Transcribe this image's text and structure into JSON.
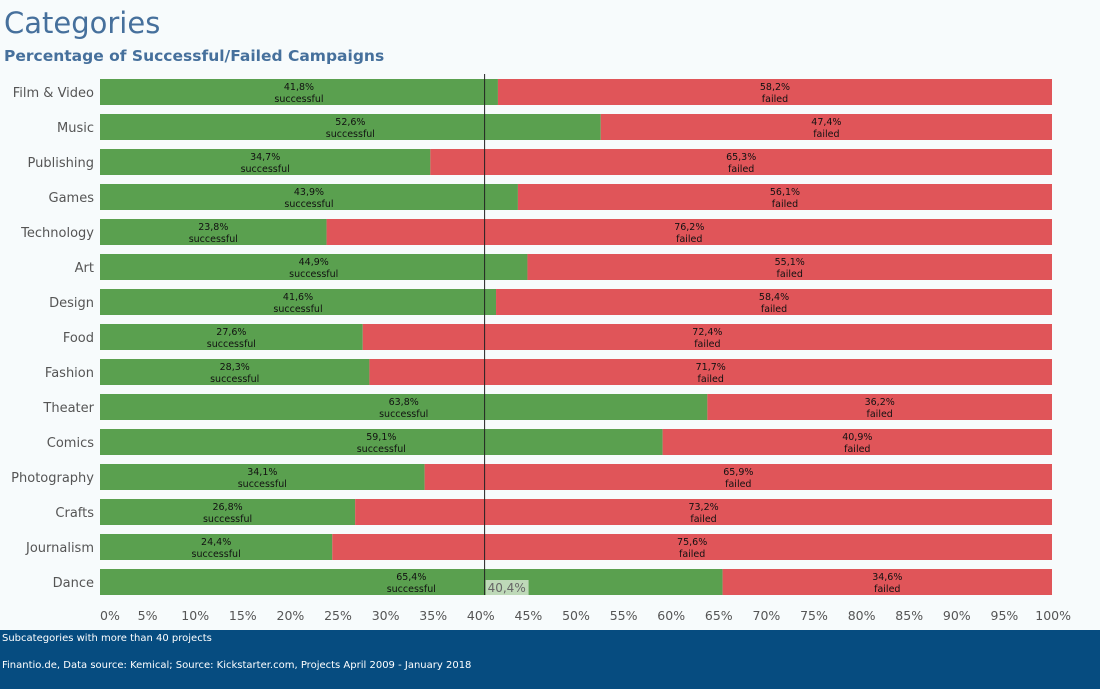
{
  "header": {
    "title": "Categories",
    "subtitle": "Percentage of Successful/Failed Campaigns"
  },
  "footer": {
    "note": "Subcategories with more than 40 projects",
    "source": "Finantio.de, Data source: Kemical; Source: Kickstarter.com, Projects April 2009 - January 2018"
  },
  "colors": {
    "successful": "#5aa04f",
    "failed": "#e05559",
    "title": "#46709c",
    "footer_bg": "#064c80"
  },
  "chart_data": {
    "type": "bar",
    "orientation": "horizontal",
    "stacked": true,
    "categories": [
      "Film & Video",
      "Music",
      "Publishing",
      "Games",
      "Technology",
      "Art",
      "Design",
      "Food",
      "Fashion",
      "Theater",
      "Comics",
      "Photography",
      "Crafts",
      "Journalism",
      "Dance"
    ],
    "series": [
      {
        "name": "successful",
        "values": [
          41.8,
          52.6,
          34.7,
          43.9,
          23.8,
          44.9,
          41.6,
          27.6,
          28.3,
          63.8,
          59.1,
          34.1,
          26.8,
          24.4,
          65.4
        ]
      },
      {
        "name": "failed",
        "values": [
          58.2,
          47.4,
          65.3,
          56.1,
          76.2,
          55.1,
          58.4,
          72.4,
          71.7,
          36.2,
          40.9,
          65.9,
          73.2,
          75.6,
          34.6
        ]
      }
    ],
    "value_labels": {
      "successful": [
        "41,8%",
        "52,6%",
        "34,7%",
        "43,9%",
        "23,8%",
        "44,9%",
        "41,6%",
        "27,6%",
        "28,3%",
        "63,8%",
        "59,1%",
        "34,1%",
        "26,8%",
        "24,4%",
        "65,4%"
      ],
      "failed": [
        "58,2%",
        "47,4%",
        "65,3%",
        "56,1%",
        "76,2%",
        "55,1%",
        "58,4%",
        "72,4%",
        "71,7%",
        "36,2%",
        "40,9%",
        "65,9%",
        "73,2%",
        "75,6%",
        "34,6%"
      ]
    },
    "x_ticks": [
      0,
      5,
      10,
      15,
      20,
      25,
      30,
      35,
      40,
      45,
      50,
      55,
      60,
      65,
      70,
      75,
      80,
      85,
      90,
      95,
      100
    ],
    "x_tick_labels": [
      "0%",
      "5%",
      "10%",
      "15%",
      "20%",
      "25%",
      "30%",
      "35%",
      "40%",
      "45%",
      "50%",
      "55%",
      "60%",
      "65%",
      "70%",
      "75%",
      "80%",
      "85%",
      "90%",
      "95%",
      "100%"
    ],
    "xlim": [
      0,
      100
    ],
    "reference_line": {
      "value": 40.4,
      "label": "40,4%"
    },
    "grid": false,
    "legend": "none"
  }
}
